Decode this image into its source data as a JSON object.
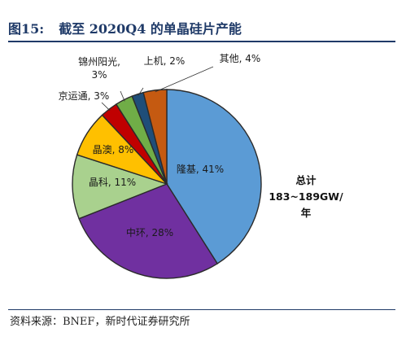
{
  "figure": {
    "label": "图15:",
    "title": "截至 2020Q4 的单晶硅片产能",
    "source": "资料来源：BNEF，新时代证券研究所"
  },
  "chart_data": {
    "type": "pie",
    "title": "截至 2020Q4 的单晶硅片产能",
    "annotation": {
      "title": "总计",
      "value": "183~189GW/年"
    },
    "slices": [
      {
        "name": "隆基",
        "value": 41,
        "label": "隆基, 41%",
        "color": "#5b9bd5"
      },
      {
        "name": "中环",
        "value": 28,
        "label": "中环, 28%",
        "color": "#7030a0"
      },
      {
        "name": "晶科",
        "value": 11,
        "label": "晶科, 11%",
        "color": "#a9d18e"
      },
      {
        "name": "晶澳",
        "value": 8,
        "label": "晶澳, 8%",
        "color": "#ffc000"
      },
      {
        "name": "京运通",
        "value": 3,
        "label": "京运通, 3%",
        "color": "#c00000"
      },
      {
        "name": "锦州阳光",
        "value": 3,
        "label": "锦州阳光,\n3%",
        "color": "#70ad47"
      },
      {
        "name": "上机",
        "value": 2,
        "label": "上机, 2%",
        "color": "#1f4e79"
      },
      {
        "name": "其他",
        "value": 4,
        "label": "其他, 4%",
        "color": "#c55a11"
      }
    ]
  }
}
